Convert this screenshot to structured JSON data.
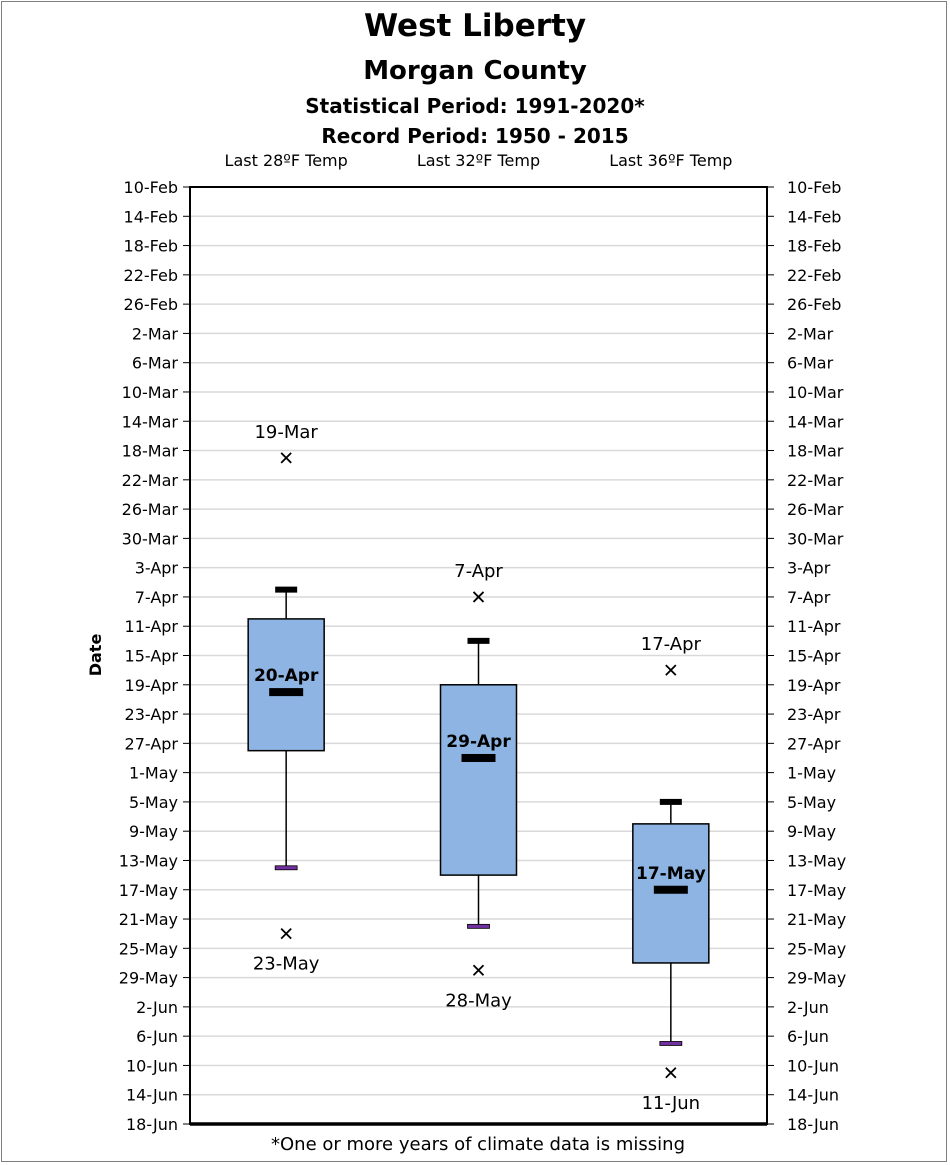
{
  "title": "West Liberty",
  "subtitle": "Morgan County",
  "statistical_period": "Statistical Period: 1991-2020*",
  "record_period": "Record Period: 1950 - 2015",
  "footnote": "*One or more years of climate data is missing",
  "chart_data": {
    "type": "box",
    "title": "West Liberty",
    "ylabel": "Date",
    "ylim": [
      "10-Feb",
      "18-Jun"
    ],
    "y_axis": "day of year (date), earlier dates at top",
    "y_ticks": [
      "10-Feb",
      "14-Feb",
      "18-Feb",
      "22-Feb",
      "26-Feb",
      "2-Mar",
      "6-Mar",
      "10-Mar",
      "14-Mar",
      "18-Mar",
      "22-Mar",
      "26-Mar",
      "30-Mar",
      "3-Apr",
      "7-Apr",
      "11-Apr",
      "15-Apr",
      "19-Apr",
      "23-Apr",
      "27-Apr",
      "1-May",
      "5-May",
      "9-May",
      "13-May",
      "17-May",
      "21-May",
      "25-May",
      "29-May",
      "2-Jun",
      "6-Jun",
      "10-Jun",
      "14-Jun",
      "18-Jun"
    ],
    "grid": true,
    "categories": [
      "Last 28ºF Temp",
      "Last 32ºF Temp",
      "Last 36ºF Temp"
    ],
    "series": [
      {
        "category": "Last 28ºF Temp",
        "whisker_low": "6-Apr",
        "q1": "10-Apr",
        "median": "20-Apr",
        "q3": "28-Apr",
        "whisker_high": "14-May",
        "median_label": "20-Apr",
        "outliers": [
          {
            "date": "19-Mar",
            "label": "19-Mar"
          },
          {
            "date": "23-May",
            "label": "23-May"
          }
        ]
      },
      {
        "category": "Last 32ºF Temp",
        "whisker_low": "13-Apr",
        "q1": "19-Apr",
        "median": "29-Apr",
        "q3": "15-May",
        "whisker_high": "22-May",
        "median_label": "29-Apr",
        "outliers": [
          {
            "date": "7-Apr",
            "label": "7-Apr"
          },
          {
            "date": "28-May",
            "label": "28-May"
          }
        ]
      },
      {
        "category": "Last 36ºF Temp",
        "whisker_low": "5-May",
        "q1": "8-May",
        "median": "17-May",
        "q3": "27-May",
        "whisker_high": "7-Jun",
        "median_label": "17-May",
        "outliers": [
          {
            "date": "17-Apr",
            "label": "17-Apr"
          },
          {
            "date": "11-Jun",
            "label": "11-Jun"
          }
        ]
      }
    ],
    "colors": {
      "box_fill": "#8db4e2",
      "box_stroke": "#000000",
      "gridline": "#d9d9d9",
      "whisker_low_cap": "#7030a0"
    }
  }
}
